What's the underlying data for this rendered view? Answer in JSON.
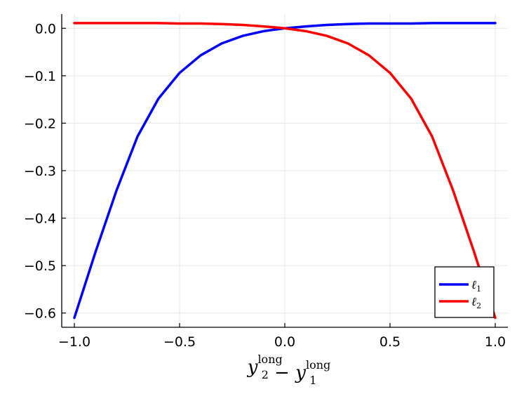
{
  "chart_data": {
    "type": "line",
    "title": "",
    "xlabel": {
      "parts": [
        {
          "text": "y",
          "sub": "2",
          "sup": "long"
        },
        {
          "text": " − "
        },
        {
          "text": "y",
          "sub": "1",
          "sup": "long"
        }
      ]
    },
    "ylabel": "",
    "xlim": [
      -1.06,
      1.06
    ],
    "ylim": [
      -0.63,
      0.03
    ],
    "xticks": [
      -1.0,
      -0.5,
      0.0,
      0.5,
      1.0
    ],
    "xtick_labels": [
      "−1.0",
      "−0.5",
      "0.0",
      "0.5",
      "1.0"
    ],
    "yticks": [
      0.0,
      -0.1,
      -0.2,
      -0.3,
      -0.4,
      -0.5,
      -0.6
    ],
    "ytick_labels": [
      "0.0",
      "−0.1",
      "−0.2",
      "−0.3",
      "−0.4",
      "−0.5",
      "−0.6"
    ],
    "grid": true,
    "legend_position": "bottom-right",
    "x": [
      -1.0,
      -0.9,
      -0.8,
      -0.7,
      -0.6,
      -0.5,
      -0.4,
      -0.3,
      -0.2,
      -0.1,
      0.0,
      0.1,
      0.2,
      0.3,
      0.4,
      0.5,
      0.6,
      0.7,
      0.8,
      0.9,
      1.0
    ],
    "series": [
      {
        "name": "ℓ",
        "name_sub": "1",
        "color": "#0000ff",
        "values": [
          -0.61,
          -0.472,
          -0.342,
          -0.228,
          -0.148,
          -0.094,
          -0.057,
          -0.032,
          -0.016,
          -0.006,
          0.0,
          0.004,
          0.007,
          0.009,
          0.01,
          0.01,
          0.01,
          0.011,
          0.011,
          0.011,
          0.011
        ]
      },
      {
        "name": "ℓ",
        "name_sub": "2",
        "color": "#ff0000",
        "values": [
          0.011,
          0.011,
          0.011,
          0.011,
          0.011,
          0.01,
          0.01,
          0.009,
          0.007,
          0.004,
          0.0,
          -0.006,
          -0.016,
          -0.032,
          -0.057,
          -0.094,
          -0.148,
          -0.228,
          -0.342,
          -0.472,
          -0.61
        ]
      }
    ]
  }
}
